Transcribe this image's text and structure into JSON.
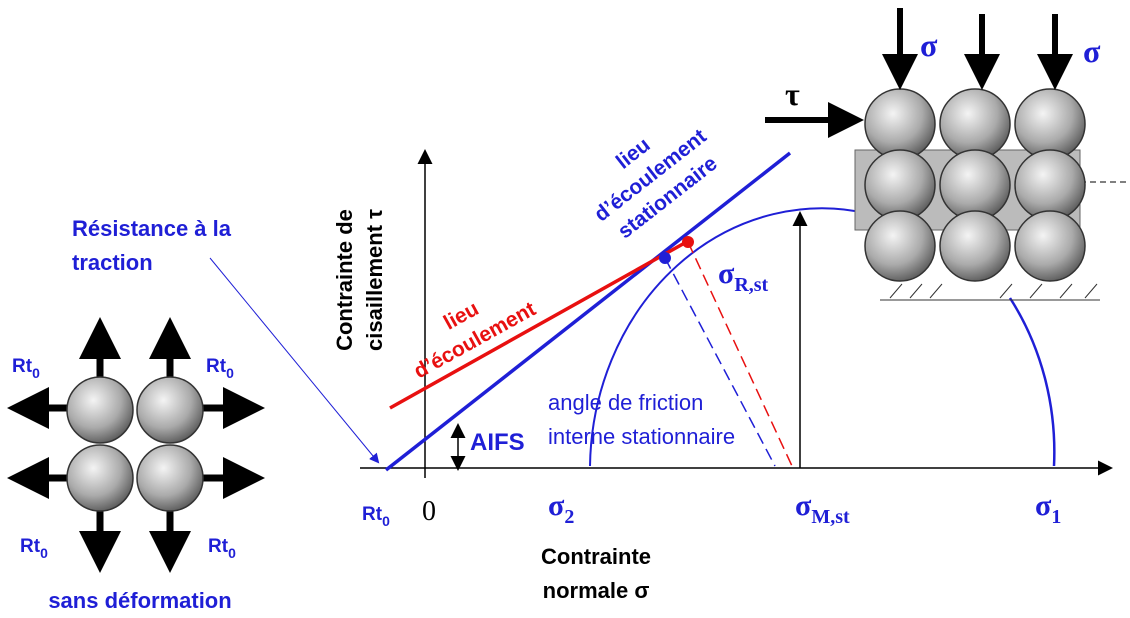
{
  "left": {
    "tensile_label": [
      "Résistance à la",
      "traction"
    ],
    "rt_labels": [
      {
        "base": "Rt",
        "sub": "0"
      },
      {
        "base": "Rt",
        "sub": "0"
      },
      {
        "base": "Rt",
        "sub": "0"
      },
      {
        "base": "Rt",
        "sub": "0"
      }
    ],
    "caption": "sans déformation"
  },
  "axes": {
    "y_label": [
      "Contrainte de",
      "cisaillement τ"
    ],
    "x_label": [
      "Contrainte",
      "normale σ"
    ],
    "ticks": [
      {
        "base": "Rt",
        "sub": "0"
      },
      {
        "base": "0"
      },
      {
        "base": "σ",
        "sub": "2"
      },
      {
        "base": "σ",
        "sub": "M,st"
      },
      {
        "base": "σ",
        "sub": "1"
      }
    ]
  },
  "lines": {
    "yield_locus": [
      "lieu",
      "d’écoulement"
    ],
    "steady_locus": [
      "lieu",
      "d’écoulement",
      "stationnaire"
    ]
  },
  "annotations": {
    "sigma_r": {
      "base": "σ",
      "sub": "R,st"
    },
    "aifs": "AIFS",
    "angle": [
      "angle de friction",
      "interne stationnaire"
    ]
  },
  "particles": {
    "tau": "τ",
    "sigma_left": "σ",
    "sigma_right": "σ"
  }
}
